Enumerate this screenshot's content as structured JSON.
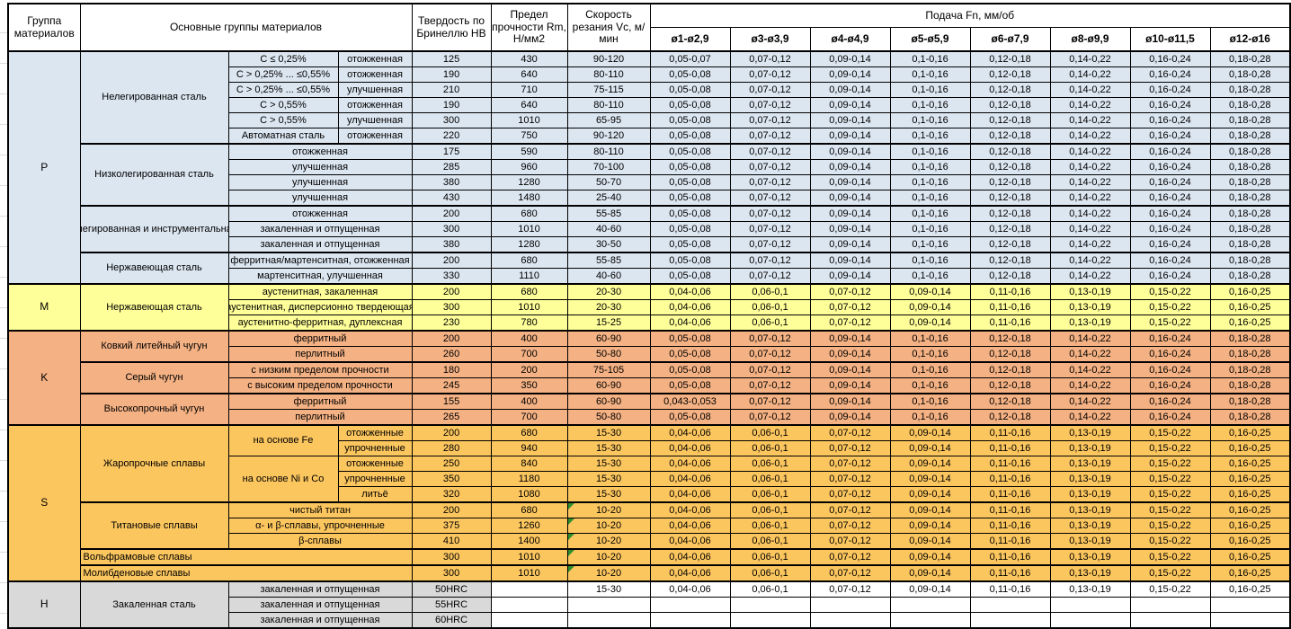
{
  "colors": {
    "p": "#DCE6F1",
    "m": "#FFFF99",
    "k": "#F4B183",
    "s": "#FCC65F",
    "h": "#D9D9D9",
    "marker": "#2F8F2F",
    "border": "#000000"
  },
  "table": {
    "header": {
      "col_group": "Группа материалов",
      "col_main": "Основные группы материалов",
      "col_hardness": "Твердость по Бринеллю HB",
      "col_strength": "Предел прочности Rm, Н/мм2",
      "col_speed": "Скорость резания Vc, м/мин",
      "col_feed": "Подача Fn, мм/об",
      "feed_cols": [
        "ø1-ø2,9",
        "ø3-ø3,9",
        "ø4-ø4,9",
        "ø5-ø5,9",
        "ø6-ø7,9",
        "ø8-ø9,9",
        "ø10-ø11,5",
        "ø12-ø16"
      ]
    },
    "feed_sets": {
      "p_first": [
        "0,05-0,07",
        "0,07-0,12",
        "0,09-0,14",
        "0,1-0,16",
        "0,12-0,18",
        "0,14-0,22",
        "0,16-0,24",
        "0,18-0,28"
      ],
      "p_std": [
        "0,05-0,08",
        "0,07-0,12",
        "0,09-0,14",
        "0,1-0,16",
        "0,12-0,18",
        "0,14-0,22",
        "0,16-0,24",
        "0,18-0,28"
      ],
      "k_ferrit": [
        "0,043-0,053",
        "0,07-0,12",
        "0,09-0,14",
        "0,1-0,16",
        "0,12-0,18",
        "0,14-0,22",
        "0,16-0,24",
        "0,18-0,28"
      ],
      "ms_std": [
        "0,04-0,06",
        "0,06-0,1",
        "0,07-0,12",
        "0,09-0,14",
        "0,11-0,16",
        "0,13-0,19",
        "0,15-0,22",
        "0,16-0,25"
      ],
      "empty": [
        "",
        "",
        "",
        "",
        "",
        "",
        "",
        ""
      ]
    },
    "rows": [
      {
        "grp": "p",
        "thick": true,
        "lead": {
          "t": "P",
          "rs": 15
        },
        "cells": [
          {
            "t": "Нелегированная сталь",
            "rs": 6
          },
          {
            "t": "C ≤ 0,25%"
          },
          {
            "t": "отожженная"
          },
          {
            "t": "125"
          },
          {
            "t": "430"
          },
          {
            "t": "90-120"
          }
        ],
        "feeds": "p_first"
      },
      {
        "grp": "p",
        "cells": [
          {
            "t": "C > 0,25% ... ≤0,55%"
          },
          {
            "t": "отожженная"
          },
          {
            "t": "190"
          },
          {
            "t": "640"
          },
          {
            "t": "80-110"
          }
        ],
        "feeds": "p_std"
      },
      {
        "grp": "p",
        "cells": [
          {
            "t": "C > 0,25% ... ≤0,55%"
          },
          {
            "t": "улучшенная"
          },
          {
            "t": "210"
          },
          {
            "t": "710"
          },
          {
            "t": "75-115"
          }
        ],
        "feeds": "p_std"
      },
      {
        "grp": "p",
        "cells": [
          {
            "t": "C > 0,55%"
          },
          {
            "t": "отожженная"
          },
          {
            "t": "190"
          },
          {
            "t": "640"
          },
          {
            "t": "80-110"
          }
        ],
        "feeds": "p_std"
      },
      {
        "grp": "p",
        "cells": [
          {
            "t": "C > 0,55%"
          },
          {
            "t": "улучшенная"
          },
          {
            "t": "300"
          },
          {
            "t": "1010"
          },
          {
            "t": "65-95"
          }
        ],
        "feeds": "p_std"
      },
      {
        "grp": "p",
        "cells": [
          {
            "t": "Автоматная сталь"
          },
          {
            "t": "отожженная"
          },
          {
            "t": "220"
          },
          {
            "t": "750"
          },
          {
            "t": "90-120"
          }
        ],
        "feeds": "p_std"
      },
      {
        "grp": "p",
        "thick": true,
        "cells": [
          {
            "t": "Низколегированная сталь",
            "rs": 4
          },
          {
            "t": "отожженная",
            "cs": 2
          },
          {
            "t": "175"
          },
          {
            "t": "590"
          },
          {
            "t": "80-110"
          }
        ],
        "feeds": "p_std"
      },
      {
        "grp": "p",
        "cells": [
          {
            "t": "улучшенная",
            "cs": 2
          },
          {
            "t": "285"
          },
          {
            "t": "960"
          },
          {
            "t": "70-100"
          }
        ],
        "feeds": "p_std"
      },
      {
        "grp": "p",
        "cells": [
          {
            "t": "улучшенная",
            "cs": 2
          },
          {
            "t": "380"
          },
          {
            "t": "1280"
          },
          {
            "t": "50-70"
          }
        ],
        "feeds": "p_std"
      },
      {
        "grp": "p",
        "cells": [
          {
            "t": "улучшенная",
            "cs": 2
          },
          {
            "t": "430"
          },
          {
            "t": "1480"
          },
          {
            "t": "25-40"
          }
        ],
        "feeds": "p_std"
      },
      {
        "grp": "p",
        "thick": true,
        "cells": [
          {
            "t": "Высоколегированная и инструментальная сталь",
            "rs": 3,
            "wrap": true
          },
          {
            "t": "отожженная",
            "cs": 2
          },
          {
            "t": "200"
          },
          {
            "t": "680"
          },
          {
            "t": "55-85"
          }
        ],
        "feeds": "p_std"
      },
      {
        "grp": "p",
        "cells": [
          {
            "t": "закаленная и отпущенная",
            "cs": 2
          },
          {
            "t": "300"
          },
          {
            "t": "1010"
          },
          {
            "t": "40-60"
          }
        ],
        "feeds": "p_std"
      },
      {
        "grp": "p",
        "cells": [
          {
            "t": "закаленная и отпущенная",
            "cs": 2
          },
          {
            "t": "380"
          },
          {
            "t": "1280"
          },
          {
            "t": "30-50"
          }
        ],
        "feeds": "p_std"
      },
      {
        "grp": "p",
        "thick": true,
        "cells": [
          {
            "t": "Нержавеющая сталь",
            "rs": 2
          },
          {
            "t": "ферритная/мартенситная, отожженная",
            "cs": 2
          },
          {
            "t": "200"
          },
          {
            "t": "680"
          },
          {
            "t": "55-85"
          }
        ],
        "feeds": "p_std"
      },
      {
        "grp": "p",
        "cells": [
          {
            "t": "мартенситная, улучшенная",
            "cs": 2
          },
          {
            "t": "330"
          },
          {
            "t": "1110"
          },
          {
            "t": "40-60"
          }
        ],
        "feeds": "p_std"
      },
      {
        "grp": "m",
        "thick": true,
        "lead": {
          "t": "M",
          "rs": 3
        },
        "cells": [
          {
            "t": "Нержавеющая сталь",
            "rs": 3
          },
          {
            "t": "аустенитная, закаленная",
            "cs": 2
          },
          {
            "t": "200"
          },
          {
            "t": "680"
          },
          {
            "t": "20-30"
          }
        ],
        "feeds": "ms_std"
      },
      {
        "grp": "m",
        "cells": [
          {
            "t": "аустенитная, дисперсионно твердеющая",
            "cs": 2
          },
          {
            "t": "300"
          },
          {
            "t": "1010"
          },
          {
            "t": "20-30"
          }
        ],
        "feeds": "ms_std"
      },
      {
        "grp": "m",
        "cells": [
          {
            "t": "аустенитно-ферритная, дуплексная",
            "cs": 2
          },
          {
            "t": "230"
          },
          {
            "t": "780"
          },
          {
            "t": "15-25"
          }
        ],
        "feeds": "ms_std"
      },
      {
        "grp": "k",
        "thick": true,
        "lead": {
          "t": "K",
          "rs": 6
        },
        "cells": [
          {
            "t": "Ковкий литейный чугун",
            "rs": 2
          },
          {
            "t": "ферритный",
            "cs": 2
          },
          {
            "t": "200"
          },
          {
            "t": "400"
          },
          {
            "t": "60-90"
          }
        ],
        "feeds": "p_std"
      },
      {
        "grp": "k",
        "cells": [
          {
            "t": "перлитный",
            "cs": 2
          },
          {
            "t": "260"
          },
          {
            "t": "700"
          },
          {
            "t": "50-80"
          }
        ],
        "feeds": "p_std"
      },
      {
        "grp": "k",
        "thick": true,
        "cells": [
          {
            "t": "Серый чугун",
            "rs": 2
          },
          {
            "t": "с низким пределом прочности",
            "cs": 2
          },
          {
            "t": "180"
          },
          {
            "t": "200"
          },
          {
            "t": "75-105"
          }
        ],
        "feeds": "p_std"
      },
      {
        "grp": "k",
        "cells": [
          {
            "t": "с высоким пределом прочности",
            "cs": 2
          },
          {
            "t": "245"
          },
          {
            "t": "350"
          },
          {
            "t": "60-90"
          }
        ],
        "feeds": "p_std"
      },
      {
        "grp": "k",
        "thick": true,
        "cells": [
          {
            "t": "Высокопрочный чугун",
            "rs": 2
          },
          {
            "t": "ферритный",
            "cs": 2
          },
          {
            "t": "155"
          },
          {
            "t": "400"
          },
          {
            "t": "60-90"
          }
        ],
        "feeds": "k_ferrit"
      },
      {
        "grp": "k",
        "cells": [
          {
            "t": "перлитный",
            "cs": 2
          },
          {
            "t": "265"
          },
          {
            "t": "700"
          },
          {
            "t": "50-80"
          }
        ],
        "feeds": "p_std"
      },
      {
        "grp": "s",
        "thick": true,
        "lead": {
          "t": "S",
          "rs": 10
        },
        "cells": [
          {
            "t": "Жаропрочные сплавы",
            "rs": 5
          },
          {
            "t": "на основе Fe",
            "rs": 2
          },
          {
            "t": "отожженные"
          },
          {
            "t": "200"
          },
          {
            "t": "680"
          },
          {
            "t": "15-30"
          }
        ],
        "feeds": "ms_std"
      },
      {
        "grp": "s",
        "cells": [
          {
            "t": "упрочненные"
          },
          {
            "t": "280"
          },
          {
            "t": "940"
          },
          {
            "t": "15-30"
          }
        ],
        "feeds": "ms_std"
      },
      {
        "grp": "s",
        "cells": [
          {
            "t": "на основе Ni и Co",
            "rs": 3
          },
          {
            "t": "отожженные"
          },
          {
            "t": "250"
          },
          {
            "t": "840"
          },
          {
            "t": "15-30"
          }
        ],
        "feeds": "ms_std"
      },
      {
        "grp": "s",
        "cells": [
          {
            "t": "упрочненные"
          },
          {
            "t": "350"
          },
          {
            "t": "1180"
          },
          {
            "t": "15-30"
          }
        ],
        "feeds": "ms_std"
      },
      {
        "grp": "s",
        "cells": [
          {
            "t": "литьё"
          },
          {
            "t": "320"
          },
          {
            "t": "1080"
          },
          {
            "t": "15-30"
          }
        ],
        "feeds": "ms_std"
      },
      {
        "grp": "s",
        "thick": true,
        "cells": [
          {
            "t": "Титановые сплавы",
            "rs": 3
          },
          {
            "t": "чистый титан",
            "cs": 2
          },
          {
            "t": "200"
          },
          {
            "t": "680"
          },
          {
            "t": "10-20",
            "tri": true
          }
        ],
        "feeds": "ms_std"
      },
      {
        "grp": "s",
        "cells": [
          {
            "t": "α- и β-сплавы, упрочненные",
            "cs": 2
          },
          {
            "t": "375"
          },
          {
            "t": "1260"
          },
          {
            "t": "10-20",
            "tri": true
          }
        ],
        "feeds": "ms_std"
      },
      {
        "grp": "s",
        "cells": [
          {
            "t": "β-сплавы",
            "cs": 2
          },
          {
            "t": "410"
          },
          {
            "t": "1400"
          },
          {
            "t": "10-20",
            "tri": true
          }
        ],
        "feeds": "ms_std"
      },
      {
        "grp": "s",
        "thick": true,
        "cells": [
          {
            "t": "Вольфрамовые сплавы",
            "cs": 3,
            "align": "l"
          },
          {
            "t": "300"
          },
          {
            "t": "1010"
          },
          {
            "t": "10-20",
            "tri": true
          }
        ],
        "feeds": "ms_std"
      },
      {
        "grp": "s",
        "thick": true,
        "cells": [
          {
            "t": "Молибденовые сплавы",
            "cs": 3,
            "align": "l"
          },
          {
            "t": "300"
          },
          {
            "t": "1010"
          },
          {
            "t": "10-20",
            "tri": true
          }
        ],
        "feeds": "ms_std"
      },
      {
        "grp": "h",
        "thick": true,
        "lead": {
          "t": "H",
          "rs": 3
        },
        "cells": [
          {
            "t": "Закаленная сталь",
            "rs": 3
          },
          {
            "t": "закаленная и отпущенная",
            "cs": 2
          },
          {
            "t": "50HRC"
          },
          {
            "t": "",
            "white": true
          },
          {
            "t": "15-30",
            "white": true
          }
        ],
        "feeds": "ms_std",
        "feeds_white": true
      },
      {
        "grp": "h",
        "cells": [
          {
            "t": "закаленная и отпущенная",
            "cs": 2
          },
          {
            "t": "55HRC"
          },
          {
            "t": "",
            "white": true
          },
          {
            "t": "",
            "white": true
          }
        ],
        "feeds": "empty",
        "feeds_white": true
      },
      {
        "grp": "h",
        "cells": [
          {
            "t": "закаленная и отпущенная",
            "cs": 2
          },
          {
            "t": "60HRC"
          },
          {
            "t": "",
            "white": true
          },
          {
            "t": "",
            "white": true
          }
        ],
        "feeds": "empty",
        "feeds_white": true
      }
    ]
  }
}
